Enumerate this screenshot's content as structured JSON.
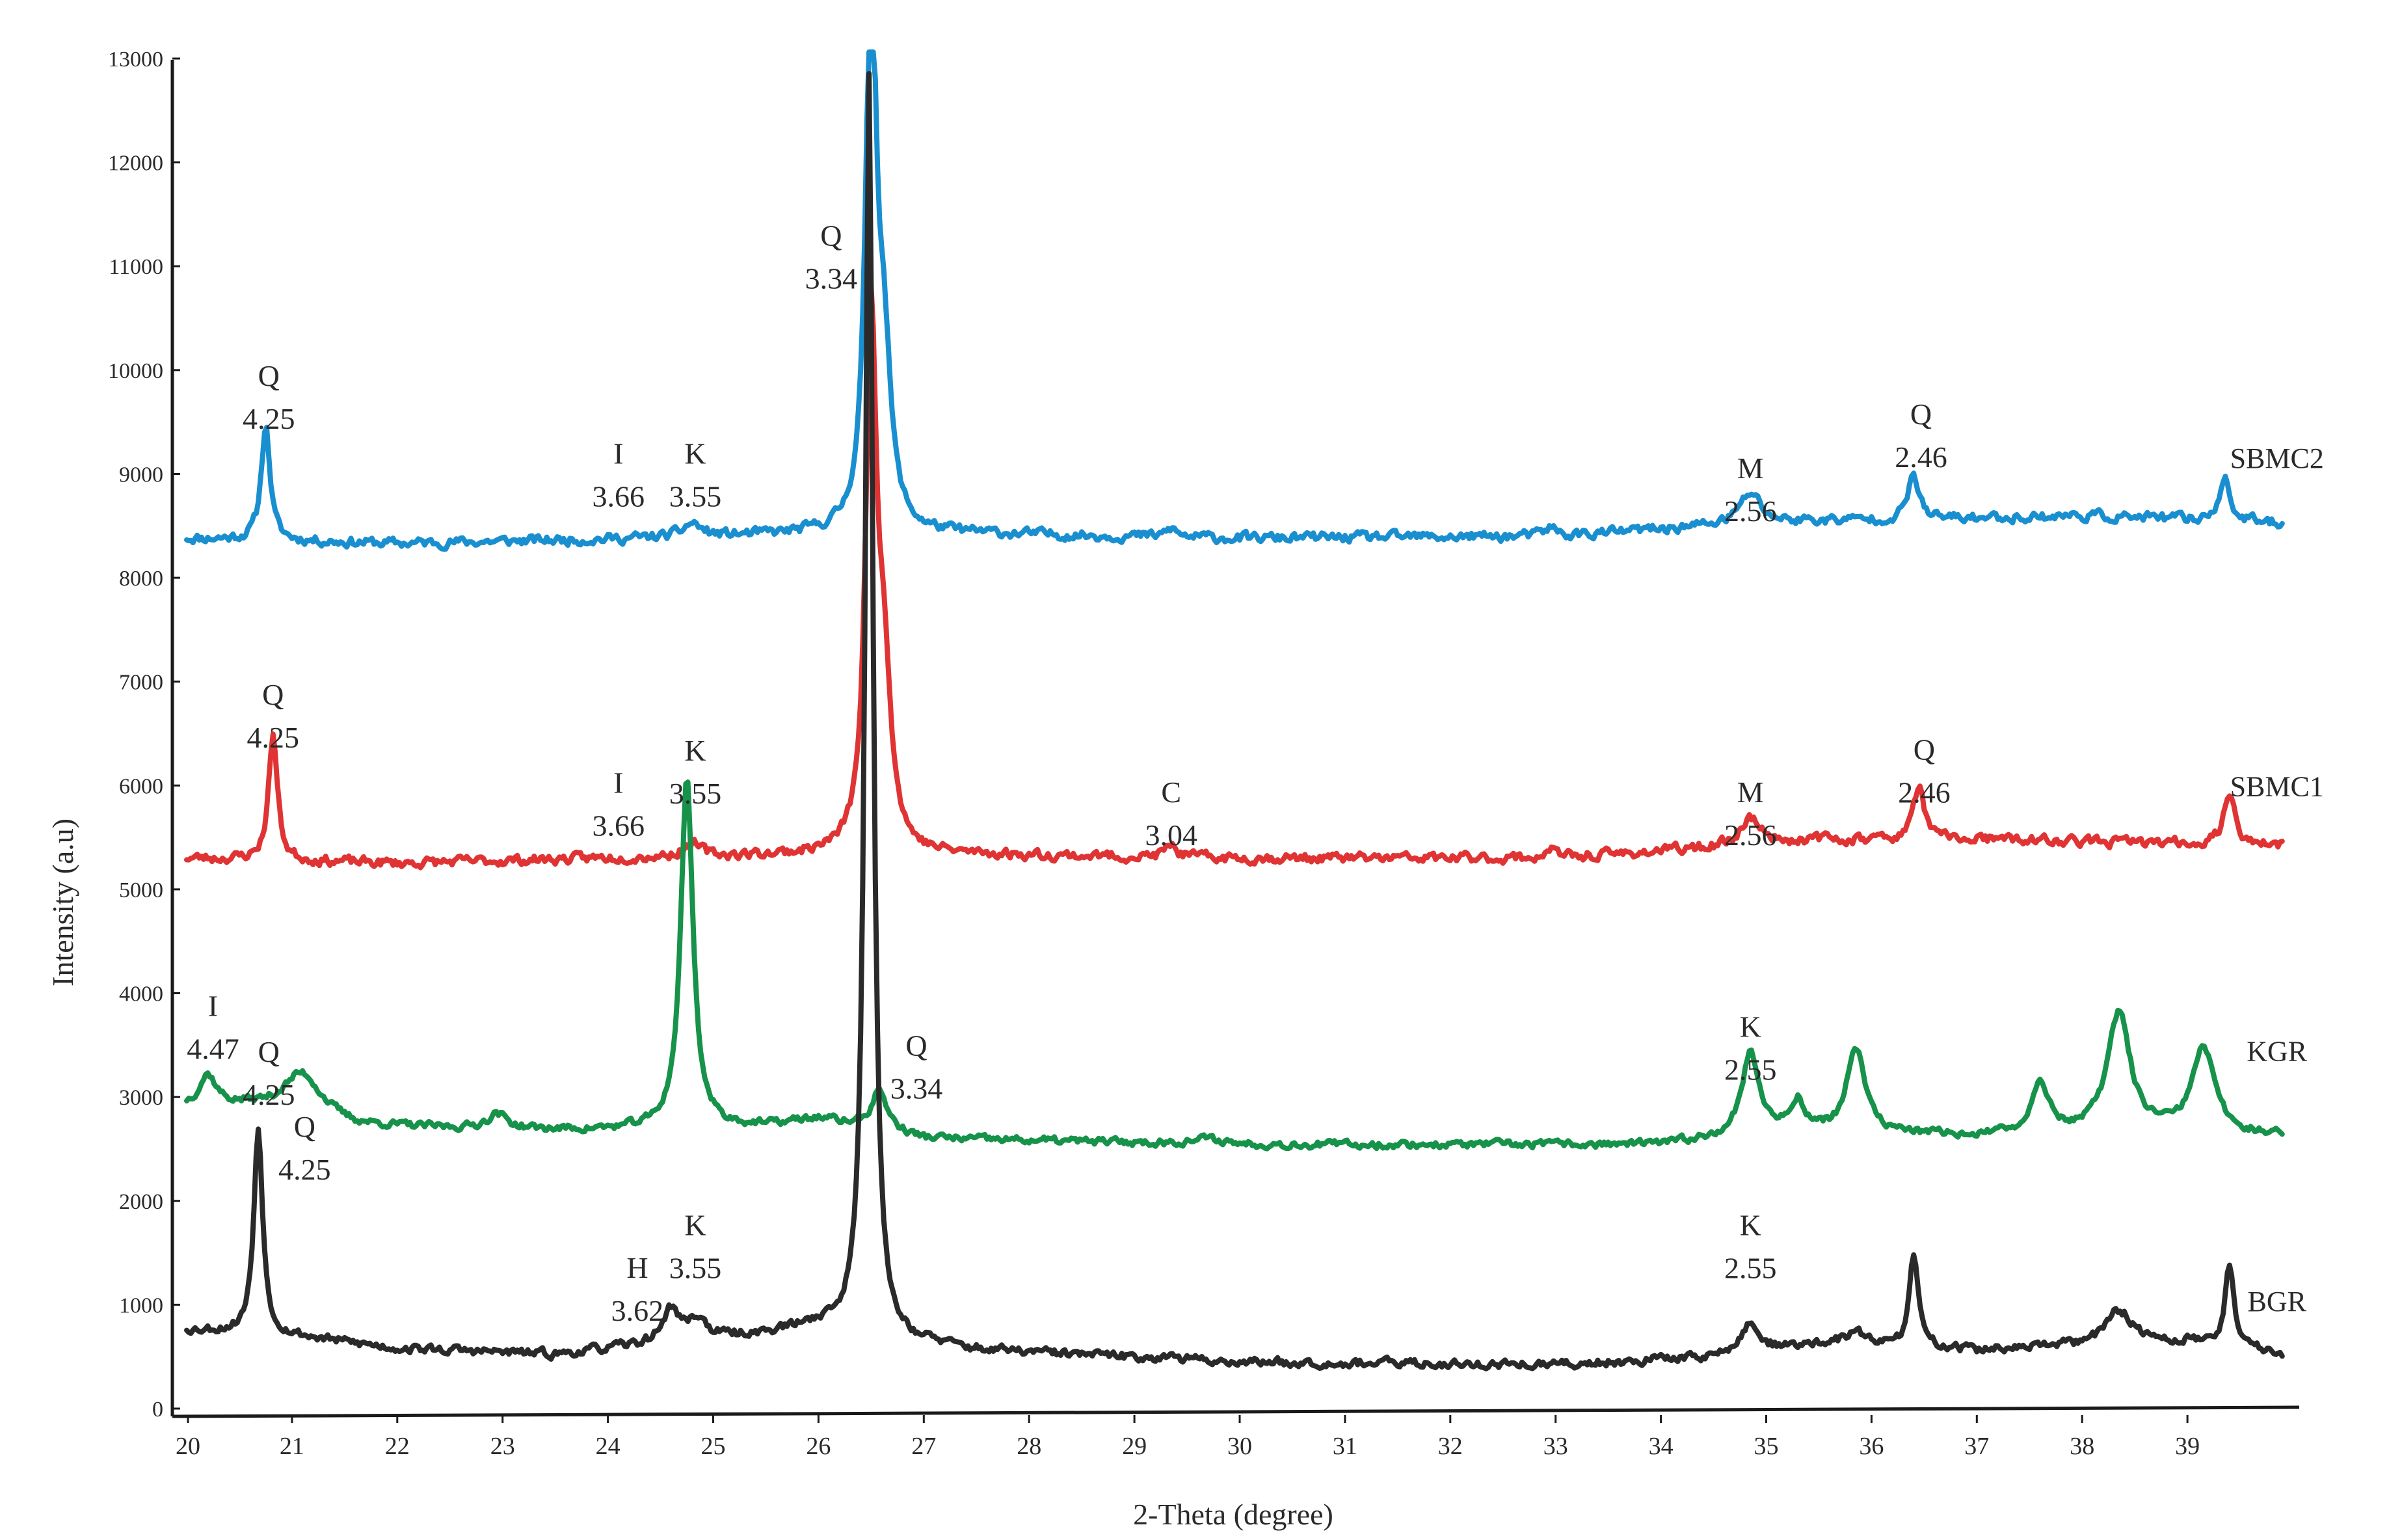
{
  "chart_data": {
    "type": "line",
    "xlabel": "2-Theta (degree)",
    "ylabel": "Intensity (a.u)",
    "xlim": [
      20,
      40
    ],
    "ylim": [
      0,
      13000
    ],
    "x_ticks": [
      20,
      21,
      22,
      23,
      24,
      25,
      26,
      27,
      28,
      29,
      30,
      31,
      32,
      33,
      34,
      35,
      36,
      37,
      38,
      39
    ],
    "y_ticks": [
      0,
      1000,
      2000,
      3000,
      4000,
      5000,
      6000,
      7000,
      8000,
      9000,
      10000,
      11000,
      12000,
      13000
    ],
    "grid": false,
    "series": [
      {
        "name": "SBMC2",
        "color": "#1a8fd0",
        "baseline": [
          [
            20,
            8380
          ],
          [
            22,
            8330
          ],
          [
            24,
            8370
          ],
          [
            26,
            8420
          ],
          [
            27.5,
            8420
          ],
          [
            30,
            8380
          ],
          [
            33,
            8400
          ],
          [
            34.5,
            8500
          ],
          [
            35.5,
            8550
          ],
          [
            36.5,
            8560
          ],
          [
            38,
            8600
          ],
          [
            40,
            8520
          ]
        ],
        "peaks": [
          [
            20.75,
            1120,
            0.05
          ],
          [
            24.8,
            130,
            0.1
          ],
          [
            26.5,
            5250,
            0.06
          ],
          [
            26.62,
            1500,
            0.08
          ],
          [
            29.35,
            80,
            0.06
          ],
          [
            32.95,
            90,
            0.06
          ],
          [
            34.85,
            300,
            0.12
          ],
          [
            36.4,
            440,
            0.06
          ],
          [
            39.35,
            420,
            0.06
          ]
        ],
        "noise": 40,
        "seed": 11
      },
      {
        "name": "SBMC1",
        "color": "#e03434",
        "baseline": [
          [
            20,
            5300
          ],
          [
            22,
            5250
          ],
          [
            24,
            5300
          ],
          [
            26,
            5330
          ],
          [
            27.5,
            5330
          ],
          [
            30,
            5300
          ],
          [
            33,
            5300
          ],
          [
            34.5,
            5400
          ],
          [
            35.5,
            5480
          ],
          [
            37,
            5480
          ],
          [
            40,
            5420
          ]
        ],
        "peaks": [
          [
            20.82,
            1220,
            0.05
          ],
          [
            24.8,
            120,
            0.1
          ],
          [
            26.5,
            5000,
            0.06
          ],
          [
            26.62,
            1600,
            0.08
          ],
          [
            29.35,
            120,
            0.06
          ],
          [
            32.95,
            90,
            0.06
          ],
          [
            34.85,
            260,
            0.12
          ],
          [
            36.45,
            520,
            0.06
          ],
          [
            39.4,
            520,
            0.06
          ]
        ],
        "noise": 40,
        "seed": 23
      },
      {
        "name": "KGR",
        "color": "#17924a",
        "baseline": [
          [
            20,
            2900
          ],
          [
            20.6,
            2900
          ],
          [
            21.6,
            2720
          ],
          [
            23,
            2680
          ],
          [
            24,
            2680
          ],
          [
            25.5,
            2720
          ],
          [
            26,
            2790
          ],
          [
            27,
            2600
          ],
          [
            30,
            2540
          ],
          [
            34,
            2540
          ],
          [
            35,
            2650
          ],
          [
            36,
            2650
          ],
          [
            37,
            2620
          ],
          [
            38,
            2650
          ],
          [
            40,
            2620
          ]
        ],
        "peaks": [
          [
            20.2,
            300,
            0.1
          ],
          [
            21.1,
            420,
            0.22
          ],
          [
            22.95,
            150,
            0.12
          ],
          [
            24.75,
            3380,
            0.07
          ],
          [
            26.58,
            380,
            0.09
          ],
          [
            29.7,
            50,
            0.2
          ],
          [
            34.85,
            780,
            0.1
          ],
          [
            35.3,
            300,
            0.08
          ],
          [
            35.85,
            820,
            0.1
          ],
          [
            37.6,
            520,
            0.09
          ],
          [
            38.35,
            1150,
            0.13
          ],
          [
            39.15,
            820,
            0.13
          ]
        ],
        "noise": 30,
        "seed": 37
      },
      {
        "name": "BGR",
        "color": "#2a2a2a",
        "baseline": [
          [
            20,
            760
          ],
          [
            20.6,
            730
          ],
          [
            21,
            700
          ],
          [
            22,
            580
          ],
          [
            23.5,
            520
          ],
          [
            25.5,
            720
          ],
          [
            26,
            800
          ],
          [
            26.8,
            650
          ],
          [
            27.5,
            560
          ],
          [
            30,
            450
          ],
          [
            33,
            420
          ],
          [
            34.5,
            500
          ],
          [
            35.5,
            620
          ],
          [
            36.5,
            600
          ],
          [
            37,
            560
          ],
          [
            38,
            600
          ],
          [
            39,
            640
          ],
          [
            39.7,
            560
          ],
          [
            40,
            500
          ]
        ],
        "peaks": [
          [
            20.68,
            2000,
            0.05
          ],
          [
            24.6,
            320,
            0.1
          ],
          [
            24.85,
            200,
            0.1
          ],
          [
            26.48,
            12150,
            0.045
          ],
          [
            29.3,
            40,
            0.05
          ],
          [
            34.85,
            280,
            0.1
          ],
          [
            35.85,
            130,
            0.1
          ],
          [
            36.4,
            860,
            0.05
          ],
          [
            38.35,
            330,
            0.16
          ],
          [
            39.4,
            800,
            0.05
          ]
        ],
        "noise": 35,
        "seed": 53
      }
    ],
    "annotations": [
      {
        "phase": "Q",
        "d": "4.25",
        "x": 20.78,
        "y": 9850
      },
      {
        "phase": "I",
        "d": "3.66",
        "x": 24.1,
        "y": 9100
      },
      {
        "phase": "K",
        "d": "3.55",
        "x": 24.83,
        "y": 9100
      },
      {
        "phase": "Q",
        "d": "3.34",
        "x": 26.12,
        "y": 11200
      },
      {
        "phase": "M",
        "d": "2.56",
        "x": 34.85,
        "y": 8960
      },
      {
        "phase": "Q",
        "d": "2.46",
        "x": 36.47,
        "y": 9480
      },
      {
        "phase": "Q",
        "d": "4.25",
        "x": 20.82,
        "y": 6780
      },
      {
        "phase": "K",
        "d": "3.55",
        "x": 24.83,
        "y": 6240
      },
      {
        "phase": "I",
        "d": "3.66",
        "x": 24.1,
        "y": 5930
      },
      {
        "phase": "C",
        "d": "3.04",
        "x": 29.35,
        "y": 5840
      },
      {
        "phase": "M",
        "d": "2.56",
        "x": 34.85,
        "y": 5840
      },
      {
        "phase": "Q",
        "d": "2.46",
        "x": 36.5,
        "y": 6250
      },
      {
        "phase": "I",
        "d": "4.47",
        "x": 20.25,
        "y": 3780
      },
      {
        "phase": "Q",
        "d": "4.25",
        "x": 20.78,
        "y": 3340
      },
      {
        "phase": "Q",
        "d": "3.34",
        "x": 26.93,
        "y": 3400
      },
      {
        "phase": "K",
        "d": "2.55",
        "x": 34.85,
        "y": 3580
      },
      {
        "phase": "Q",
        "d": "4.25",
        "x": 21.12,
        "y": 2620
      },
      {
        "phase": "K",
        "d": "3.55",
        "x": 24.83,
        "y": 1670
      },
      {
        "phase": "H",
        "d": "3.62",
        "x": 24.28,
        "y": 1260
      },
      {
        "phase": "K",
        "d": "2.55",
        "x": 34.85,
        "y": 1670
      }
    ],
    "series_labels": [
      {
        "text": "SBMC2",
        "x": 39.85,
        "y": 9060
      },
      {
        "text": "SBMC1",
        "x": 39.85,
        "y": 5900
      },
      {
        "text": "KGR",
        "x": 39.85,
        "y": 3350
      },
      {
        "text": "BGR",
        "x": 39.85,
        "y": 940
      }
    ]
  }
}
